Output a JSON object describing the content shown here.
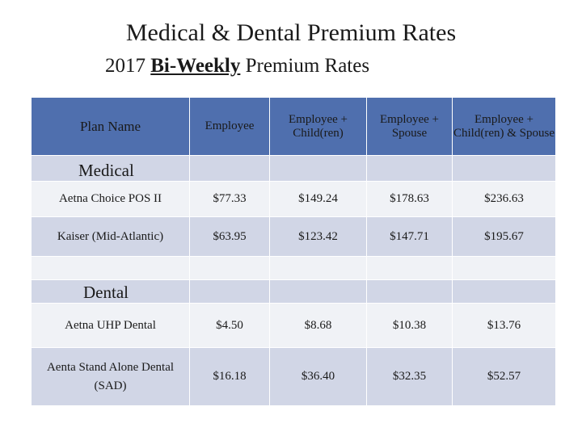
{
  "title": "Medical & Dental Premium Rates",
  "subtitle_prefix": "2017 ",
  "subtitle_emph": "Bi-Weekly",
  "subtitle_suffix": " Premium Rates",
  "table": {
    "headers": [
      "Plan Name",
      "Employee",
      "Employee + Child(ren)",
      "Employee + Spouse",
      "Employee + Child(ren) & Spouse"
    ],
    "sections": {
      "medical": "Medical",
      "dental": "Dental"
    },
    "rows": {
      "aetna_pos": [
        "Aetna Choice POS II",
        "$77.33",
        "$149.24",
        "$178.63",
        "$236.63"
      ],
      "kaiser": [
        "Kaiser (Mid-Atlantic)",
        "$63.95",
        "$123.42",
        "$147.71",
        "$195.67"
      ],
      "aetna_uhp": [
        "Aetna UHP Dental",
        "$4.50",
        "$8.68",
        "$10.38",
        "$13.76"
      ],
      "aenta_sad": [
        "Aenta Stand Alone Dental (SAD)",
        "$16.18",
        "$36.40",
        "$32.35",
        "$52.57"
      ]
    }
  },
  "colors": {
    "header": "#4f6fae",
    "band_light": "#d1d6e6",
    "band_white": "#f0f2f6"
  }
}
